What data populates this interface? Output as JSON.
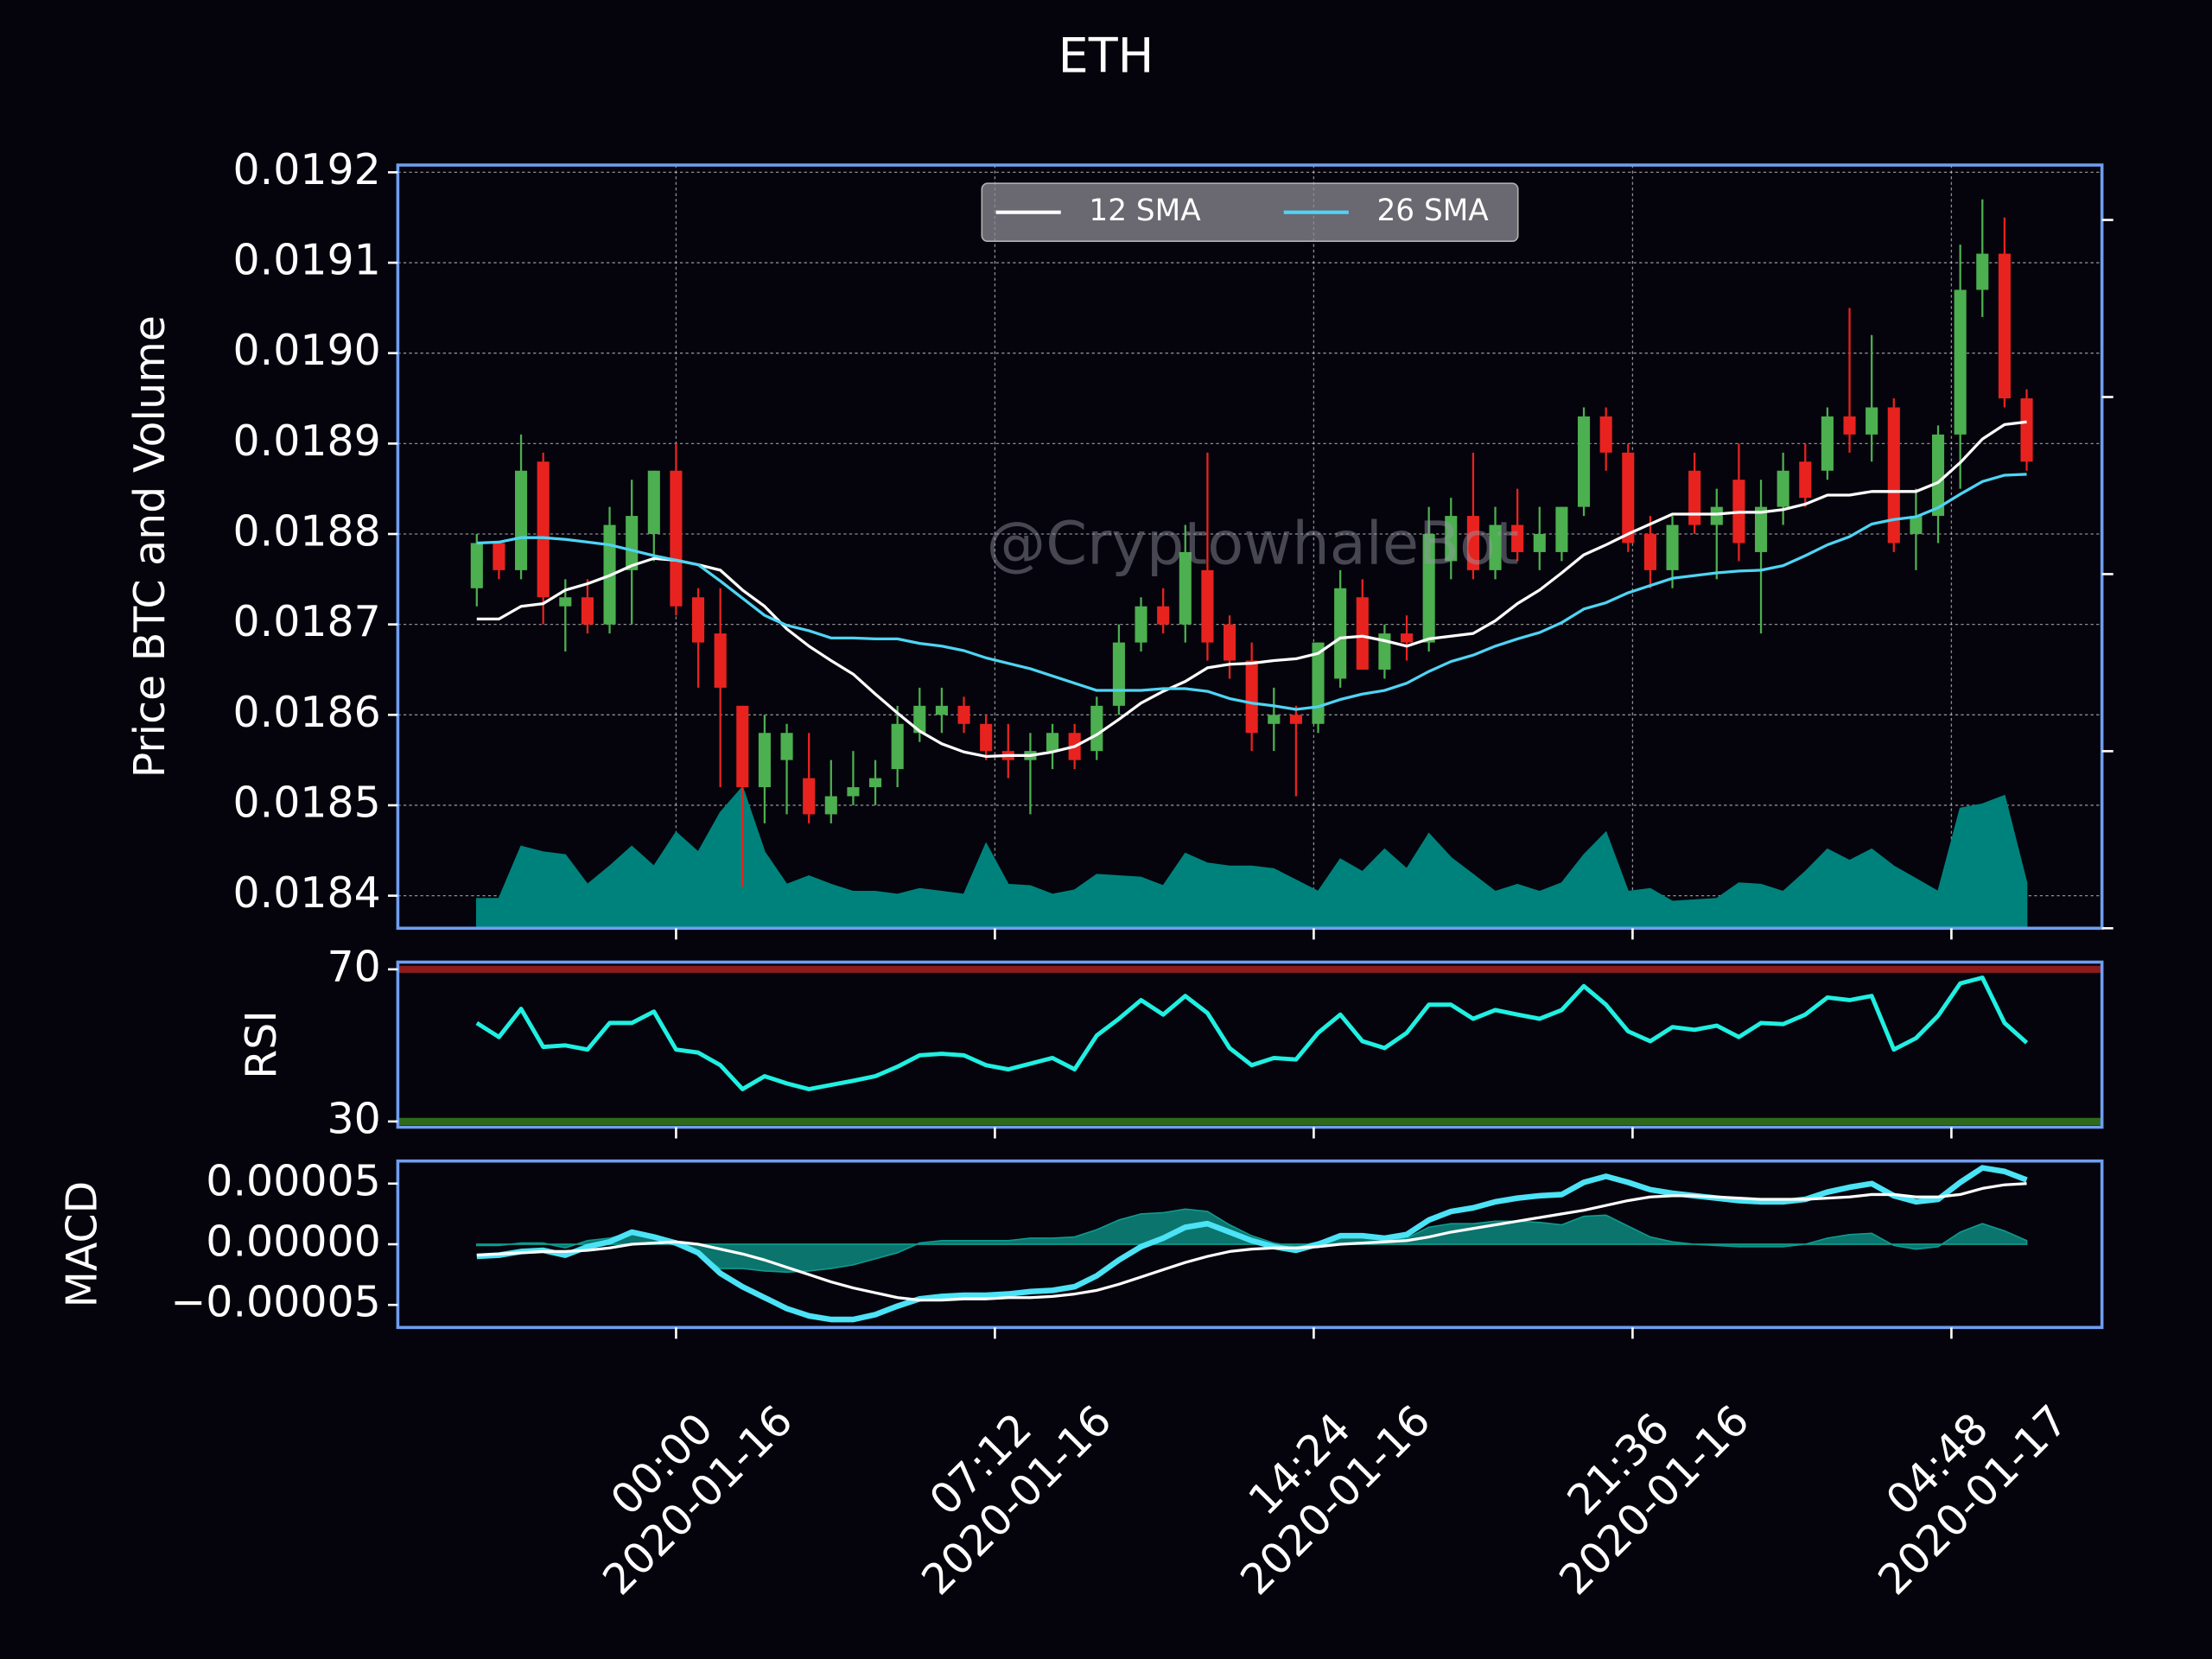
{
  "chart_data": [
    {
      "type": "candlestick",
      "title": "ETH",
      "ylabel": "Price BTC and Volume",
      "watermark": "@CryptowhaleBot",
      "x": [
        "2020-01-15 19:30",
        "2020-01-15 20:00",
        "2020-01-15 20:30",
        "2020-01-15 21:00",
        "2020-01-15 21:30",
        "2020-01-15 22:00",
        "2020-01-15 22:30",
        "2020-01-15 23:00",
        "2020-01-15 23:30",
        "2020-01-16 00:00",
        "2020-01-16 00:30",
        "2020-01-16 01:00",
        "2020-01-16 01:30",
        "2020-01-16 02:00",
        "2020-01-16 02:30",
        "2020-01-16 03:00",
        "2020-01-16 03:30",
        "2020-01-16 04:00",
        "2020-01-16 04:30",
        "2020-01-16 05:00",
        "2020-01-16 05:30",
        "2020-01-16 06:00",
        "2020-01-16 06:30",
        "2020-01-16 07:00",
        "2020-01-16 07:30",
        "2020-01-16 08:00",
        "2020-01-16 08:30",
        "2020-01-16 09:00",
        "2020-01-16 09:30",
        "2020-01-16 10:00",
        "2020-01-16 10:30",
        "2020-01-16 11:00",
        "2020-01-16 11:30",
        "2020-01-16 12:00",
        "2020-01-16 12:30",
        "2020-01-16 13:00",
        "2020-01-16 13:30",
        "2020-01-16 14:00",
        "2020-01-16 14:30",
        "2020-01-16 15:00",
        "2020-01-16 15:30",
        "2020-01-16 16:00",
        "2020-01-16 16:30",
        "2020-01-16 17:00",
        "2020-01-16 17:30",
        "2020-01-16 18:00",
        "2020-01-16 18:30",
        "2020-01-16 19:00",
        "2020-01-16 19:30",
        "2020-01-16 20:00",
        "2020-01-16 20:30",
        "2020-01-16 21:00",
        "2020-01-16 21:30",
        "2020-01-16 22:00",
        "2020-01-16 22:30",
        "2020-01-16 23:00",
        "2020-01-16 23:30",
        "2020-01-17 00:00",
        "2020-01-17 00:30",
        "2020-01-17 01:00",
        "2020-01-17 01:30",
        "2020-01-17 02:00",
        "2020-01-17 02:30",
        "2020-01-17 03:00",
        "2020-01-17 03:30",
        "2020-01-17 04:00",
        "2020-01-17 04:30",
        "2020-01-17 05:00",
        "2020-01-17 05:30",
        "2020-01-17 06:00",
        "2020-01-17 06:30"
      ],
      "xlim": [
        "2020-01-15 17:43",
        "2020-01-17 08:12"
      ],
      "xticks": [
        {
          "value": "2020-01-16 00:00",
          "label": [
            "00:00",
            "2020-01-16"
          ]
        },
        {
          "value": "2020-01-16 07:12",
          "label": [
            "07:12",
            "2020-01-16"
          ]
        },
        {
          "value": "2020-01-16 14:24",
          "label": [
            "14:24",
            "2020-01-16"
          ]
        },
        {
          "value": "2020-01-16 21:36",
          "label": [
            "21:36",
            "2020-01-16"
          ]
        },
        {
          "value": "2020-01-17 04:48",
          "label": [
            "04:48",
            "2020-01-17"
          ]
        }
      ],
      "open": [
        0.01874,
        0.01879,
        0.01876,
        0.01888,
        0.01872,
        0.01873,
        0.0187,
        0.01876,
        0.0188,
        0.01887,
        0.01873,
        0.01869,
        0.01861,
        0.01852,
        0.01855,
        0.01853,
        0.01849,
        0.01851,
        0.01852,
        0.01854,
        0.01858,
        0.0186,
        0.01861,
        0.01859,
        0.01856,
        0.01855,
        0.01856,
        0.01858,
        0.01856,
        0.01861,
        0.01868,
        0.01872,
        0.0187,
        0.01876,
        0.0187,
        0.01866,
        0.01859,
        0.0186,
        0.01859,
        0.01864,
        0.01873,
        0.01865,
        0.01869,
        0.01868,
        0.01877,
        0.01882,
        0.01876,
        0.01881,
        0.01878,
        0.01878,
        0.01883,
        0.01893,
        0.01889,
        0.0188,
        0.01876,
        0.01887,
        0.01881,
        0.01886,
        0.01878,
        0.01883,
        0.01888,
        0.01887,
        0.01893,
        0.01891,
        0.01894,
        0.0188,
        0.01882,
        0.01891,
        0.01907,
        0.01911,
        0.01895
      ],
      "high": [
        0.0188,
        0.01879,
        0.01891,
        0.01889,
        0.01875,
        0.01875,
        0.01883,
        0.01886,
        0.01887,
        0.0189,
        0.01874,
        0.01874,
        0.01861,
        0.0186,
        0.01859,
        0.01858,
        0.01855,
        0.01856,
        0.01855,
        0.01861,
        0.01863,
        0.01863,
        0.01862,
        0.0186,
        0.01859,
        0.01858,
        0.01859,
        0.01859,
        0.01862,
        0.0187,
        0.01873,
        0.01874,
        0.01881,
        0.01889,
        0.01871,
        0.01868,
        0.01863,
        0.01861,
        0.01868,
        0.01876,
        0.01875,
        0.0187,
        0.01871,
        0.01883,
        0.01884,
        0.01889,
        0.01883,
        0.01885,
        0.01883,
        0.01883,
        0.01894,
        0.01894,
        0.0189,
        0.01882,
        0.01882,
        0.01889,
        0.01885,
        0.0189,
        0.01886,
        0.01889,
        0.0189,
        0.01894,
        0.01905,
        0.01902,
        0.01895,
        0.01885,
        0.01892,
        0.01912,
        0.01917,
        0.01915,
        0.01896
      ],
      "low": [
        0.01872,
        0.01875,
        0.01875,
        0.0187,
        0.01867,
        0.01869,
        0.01869,
        0.0187,
        0.01877,
        0.01871,
        0.01863,
        0.01852,
        0.01841,
        0.01848,
        0.01849,
        0.01848,
        0.01848,
        0.0185,
        0.0185,
        0.01852,
        0.01857,
        0.01858,
        0.01858,
        0.01855,
        0.01853,
        0.01849,
        0.01854,
        0.01854,
        0.01855,
        0.0186,
        0.01867,
        0.01869,
        0.01868,
        0.01866,
        0.01864,
        0.01856,
        0.01856,
        0.01851,
        0.01858,
        0.01863,
        0.01865,
        0.01864,
        0.01866,
        0.01867,
        0.01875,
        0.01875,
        0.01875,
        0.01877,
        0.01876,
        0.01877,
        0.01882,
        0.01887,
        0.01878,
        0.01874,
        0.01874,
        0.0188,
        0.01875,
        0.01877,
        0.01869,
        0.01881,
        0.01883,
        0.01886,
        0.01889,
        0.01888,
        0.01878,
        0.01876,
        0.01879,
        0.01885,
        0.01904,
        0.01894,
        0.01887
      ],
      "close": [
        0.01879,
        0.01876,
        0.01887,
        0.01873,
        0.01873,
        0.0187,
        0.01881,
        0.01882,
        0.01887,
        0.01872,
        0.01868,
        0.01863,
        0.01852,
        0.01858,
        0.01858,
        0.01849,
        0.01851,
        0.01852,
        0.01853,
        0.01859,
        0.01861,
        0.01861,
        0.01859,
        0.01856,
        0.01855,
        0.01856,
        0.01858,
        0.01855,
        0.01861,
        0.01868,
        0.01872,
        0.0187,
        0.01878,
        0.01868,
        0.01866,
        0.01858,
        0.0186,
        0.01859,
        0.01868,
        0.01874,
        0.01865,
        0.01869,
        0.01868,
        0.0188,
        0.01882,
        0.01876,
        0.01881,
        0.01878,
        0.0188,
        0.01883,
        0.01893,
        0.01889,
        0.01879,
        0.01876,
        0.01881,
        0.01881,
        0.01883,
        0.01879,
        0.01883,
        0.01887,
        0.01884,
        0.01893,
        0.01891,
        0.01894,
        0.01879,
        0.01882,
        0.01891,
        0.01907,
        0.01911,
        0.01895,
        0.01888
      ],
      "up_color": "#4caf50",
      "down_color": "#e8231f",
      "series": [
        {
          "name": "12 SMA",
          "color": "#ffffff",
          "values": [
            0.018706,
            0.018706,
            0.01872,
            0.018723,
            0.018738,
            0.018745,
            0.018754,
            0.018765,
            0.018773,
            0.018771,
            0.018766,
            0.01876,
            0.018738,
            0.01872,
            0.018695,
            0.018676,
            0.01866,
            0.018645,
            0.018623,
            0.018602,
            0.018582,
            0.018568,
            0.018559,
            0.018554,
            0.018555,
            0.018555,
            0.018559,
            0.018565,
            0.018578,
            0.018595,
            0.018613,
            0.018626,
            0.018637,
            0.018652,
            0.018656,
            0.018657,
            0.01866,
            0.018662,
            0.018668,
            0.018685,
            0.018687,
            0.018682,
            0.018676,
            0.018684,
            0.018687,
            0.01869,
            0.018704,
            0.018723,
            0.018738,
            0.018757,
            0.018777,
            0.018788,
            0.0188,
            0.018811,
            0.018822,
            0.018822,
            0.018822,
            0.018824,
            0.018824,
            0.018827,
            0.018833,
            0.018843,
            0.018843,
            0.018847,
            0.018847,
            0.018847,
            0.018857,
            0.018879,
            0.018905,
            0.018921,
            0.018924
          ]
        },
        {
          "name": "26 SMA",
          "color": "#4fd4f4",
          "values": [
            0.01879,
            0.018791,
            0.018796,
            0.018796,
            0.018794,
            0.018791,
            0.018788,
            0.018782,
            0.018776,
            0.018771,
            0.018766,
            0.018748,
            0.018729,
            0.01871,
            0.018699,
            0.018693,
            0.018685,
            0.018685,
            0.018684,
            0.018684,
            0.018679,
            0.018676,
            0.018671,
            0.018663,
            0.018657,
            0.018651,
            0.018643,
            0.018635,
            0.018627,
            0.018627,
            0.018627,
            0.018629,
            0.018629,
            0.018626,
            0.018618,
            0.018613,
            0.01861,
            0.018606,
            0.018609,
            0.018617,
            0.018623,
            0.018627,
            0.018635,
            0.018648,
            0.018659,
            0.018666,
            0.018676,
            0.018684,
            0.018691,
            0.018702,
            0.018717,
            0.018724,
            0.018735,
            0.018743,
            0.018751,
            0.018754,
            0.018757,
            0.018759,
            0.01876,
            0.018765,
            0.018776,
            0.018788,
            0.018797,
            0.018811,
            0.018816,
            0.018819,
            0.018829,
            0.018844,
            0.018858,
            0.018865,
            0.018866
          ]
        }
      ],
      "volume": {
        "color": "#00827c",
        "axis": "y2",
        "values": [
          167,
          167,
          462,
          430,
          414,
          247,
          350,
          462,
          350,
          542,
          430,
          653,
          797,
          430,
          247,
          295,
          247,
          207,
          207,
          191,
          223,
          207,
          191,
          478,
          247,
          239,
          191,
          215,
          303,
          295,
          287,
          239,
          422,
          367,
          350,
          350,
          335,
          271,
          207,
          390,
          319,
          446,
          335,
          534,
          398,
          303,
          207,
          247,
          207,
          255,
          414,
          542,
          207,
          223,
          151,
          159,
          167,
          255,
          247,
          207,
          319,
          446,
          382,
          446,
          350,
          279,
          207,
          677,
          701,
          749,
          255
        ]
      },
      "ylim": [
        0.018364,
        0.019208
      ],
      "yticks": [
        0.0184,
        0.0185,
        0.0186,
        0.0187,
        0.0188,
        0.0189,
        {
          "value": 0.019,
          "label": "0.0190"
        },
        0.0191,
        0.0192
      ],
      "y2lim": [
        0,
        4310
      ],
      "y2ticks": [
        0,
        1000,
        2000,
        3000,
        4000
      ],
      "grid": true,
      "legend": "upper center"
    },
    {
      "type": "line",
      "ylabel": "RSI",
      "color": "#1ff0e2",
      "values": [
        55.9,
        52.2,
        59.6,
        49.6,
        50,
        48.9,
        55.9,
        55.9,
        58.9,
        48.9,
        48.1,
        44.8,
        38.5,
        41.9,
        40,
        38.5,
        39.6,
        40.7,
        41.9,
        44.4,
        47.4,
        47.8,
        47.4,
        44.8,
        43.7,
        45.2,
        46.7,
        43.7,
        52.6,
        57,
        61.9,
        58.1,
        63,
        58.5,
        49.3,
        44.8,
        46.7,
        46.3,
        53.3,
        58.1,
        51.1,
        49.3,
        53.3,
        60.7,
        60.7,
        57,
        59.3,
        58.1,
        57,
        59.3,
        65.6,
        60.7,
        53.7,
        51.1,
        54.8,
        54.1,
        55.2,
        52.2,
        55.9,
        55.6,
        58.1,
        62.6,
        61.9,
        63,
        48.9,
        51.9,
        57.8,
        66.3,
        67.8,
        55.9,
        50.7
      ],
      "ylim": [
        28.5,
        71.9
      ],
      "yticks": [
        30,
        70
      ],
      "hlines": [
        {
          "value": 70,
          "color": "#8e1b1b"
        },
        {
          "value": 30,
          "color": "#2f6a1c"
        }
      ]
    },
    {
      "type": "line",
      "ylabel": "MACD",
      "series": [
        {
          "color": "#4be3f5",
          "width": 4,
          "values": [
            -1e-05,
            -9e-06,
            -6e-06,
            -5e-06,
            -9e-06,
            -2e-06,
            2e-06,
            1e-05,
            6e-06,
            1e-06,
            -7e-06,
            -2.4e-05,
            -3.5e-05,
            -4.4e-05,
            -5.3e-05,
            -5.9e-05,
            -6.2e-05,
            -6.2e-05,
            -5.8e-05,
            -5.1e-05,
            -4.5e-05,
            -4.3e-05,
            -4.2e-05,
            -4.2e-05,
            -4.1e-05,
            -3.9e-05,
            -3.8e-05,
            -3.5e-05,
            -2.6e-05,
            -1.3e-05,
            -2e-06,
            5e-06,
            1.4e-05,
            1.7e-05,
            1e-05,
            3e-06,
            -2e-06,
            -5e-06,
            0,
            7e-06,
            7e-06,
            5e-06,
            8e-06,
            2e-05,
            2.7e-05,
            3e-05,
            3.5e-05,
            3.8e-05,
            4e-05,
            4.1e-05,
            5.1e-05,
            5.6e-05,
            5.1e-05,
            4.5e-05,
            4.2e-05,
            4e-05,
            3.8e-05,
            3.6e-05,
            3.5e-05,
            3.5e-05,
            3.7e-05,
            4.3e-05,
            4.7e-05,
            5e-05,
            4e-05,
            3.5e-05,
            3.7e-05,
            5.1e-05,
            6.3e-05,
            6e-05,
            5.3e-05
          ]
        },
        {
          "color": "#ffffff",
          "width": 2,
          "values": [
            -9e-06,
            -8e-06,
            -7e-06,
            -6e-06,
            -6e-06,
            -5e-06,
            -3e-06,
            0,
            1e-06,
            2e-06,
            0,
            -4e-06,
            -8e-06,
            -1.3e-05,
            -1.9e-05,
            -2.5e-05,
            -3.1e-05,
            -3.6e-05,
            -4e-05,
            -4.4e-05,
            -4.6e-05,
            -4.6e-05,
            -4.5e-05,
            -4.5e-05,
            -4.4e-05,
            -4.4e-05,
            -4.3e-05,
            -4.1e-05,
            -3.8e-05,
            -3.3e-05,
            -2.7e-05,
            -2.1e-05,
            -1.5e-05,
            -1e-05,
            -6e-06,
            -4e-06,
            -3e-06,
            -3e-06,
            -2e-06,
            0,
            1e-06,
            2e-06,
            3e-06,
            6e-06,
            1e-05,
            1.3e-05,
            1.6e-05,
            1.9e-05,
            2.2e-05,
            2.5e-05,
            2.8e-05,
            3.2e-05,
            3.6e-05,
            3.9e-05,
            4e-05,
            4e-05,
            3.9e-05,
            3.8e-05,
            3.7e-05,
            3.7e-05,
            3.7e-05,
            3.8e-05,
            3.9e-05,
            4.1e-05,
            4.1e-05,
            3.9e-05,
            3.9e-05,
            4.1e-05,
            4.6e-05,
            4.9e-05,
            5e-05
          ]
        }
      ],
      "histogram": {
        "color": "#0e9a8e",
        "values": [
          -1e-06,
          -1e-06,
          1e-06,
          1e-06,
          -3e-06,
          3e-06,
          5e-06,
          1e-05,
          5e-06,
          -1e-06,
          -7e-06,
          -2e-05,
          -2e-05,
          -2.2e-05,
          -2.3e-05,
          -2.2e-05,
          -2e-05,
          -1.7e-05,
          -1.2e-05,
          -7e-06,
          1e-06,
          3e-06,
          3e-06,
          3e-06,
          3e-06,
          5e-06,
          5e-06,
          6e-06,
          1.2e-05,
          2e-05,
          2.5e-05,
          2.6e-05,
          2.9e-05,
          2.7e-05,
          1.6e-05,
          7e-06,
          1e-06,
          -2e-06,
          2e-06,
          7e-06,
          6e-06,
          3e-06,
          5e-06,
          1.4e-05,
          1.7e-05,
          1.7e-05,
          1.9e-05,
          1.9e-05,
          1.8e-05,
          1.6e-05,
          2.3e-05,
          2.4e-05,
          1.5e-05,
          6e-06,
          2e-06,
          0,
          -1e-06,
          -2e-06,
          -2e-06,
          -2e-06,
          0,
          5e-06,
          8e-06,
          9e-06,
          -1e-06,
          -4e-06,
          -2e-06,
          1e-05,
          1.7e-05,
          1.1e-05,
          3e-06
        ]
      },
      "ylim": [
        -6.86e-05,
        6.86e-05
      ],
      "yticks": [
        {
          "value": 5e-05,
          "label": "0.00005"
        },
        {
          "value": 0,
          "label": "0.00000"
        },
        {
          "value": -5e-05,
          "label": "−0.00005"
        }
      ]
    }
  ]
}
